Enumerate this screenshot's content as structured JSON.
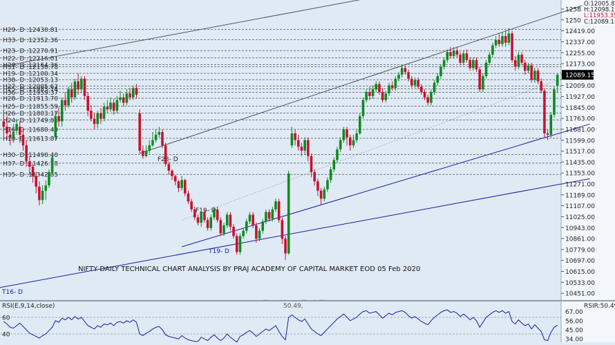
{
  "chart_data": {
    "type": "candlestick",
    "title": "NIFTY DAILY TECHNICAL CHART ANALYSIS BY PRAJ ACADEMY OF CAPITAL MARKET EOD 05 Feb 2020",
    "watermark": "Sharekhan - TradeTiger",
    "ohlc_readout": [
      "O:12005.85",
      "H:12098.15",
      "L:11953.35",
      "C:12089.15"
    ],
    "last_price": "12089.15",
    "y_axis_ticks": [
      12583.0,
      12501.0,
      12419.0,
      12337.0,
      12255.0,
      12173.0,
      12089.15,
      12009.0,
      11927.0,
      11845.0,
      11763.0,
      11681.0,
      11599.0,
      11517.0,
      11435.0,
      11353.0,
      11271.0,
      11189.0,
      11107.0,
      11025.0,
      10943.0,
      10861.0,
      10779.0,
      10697.0,
      10615.0,
      10533.0,
      10451.0
    ],
    "ylim": [
      10400,
      12640
    ],
    "horizontal_levels": [
      {
        "label": "H29- D :12430.81",
        "value": 12430.81
      },
      {
        "label": "H33- D :12352.36",
        "value": 12352.36
      },
      {
        "label": "H23- D :12270.91",
        "value": 12270.91
      },
      {
        "label": "H22- D :12216.01",
        "value": 12216.01
      },
      {
        "label": "H20- D :12164.36",
        "value": 12164.36
      },
      {
        "label": "H31- D :12150.78",
        "value": 12150.78
      },
      {
        "label": "H19- D :12100.34",
        "value": 12100.34
      },
      {
        "label": "H38- D :12053.13",
        "value": 12053.13
      },
      {
        "label": "H27- D :12005.62",
        "value": 12005.62
      },
      {
        "label": "H25- D :11985.14",
        "value": 11985.14
      },
      {
        "label": "H36- D :11959.37",
        "value": 11959.37
      },
      {
        "label": "H28- D :11913.70",
        "value": 11913.7
      },
      {
        "label": "H25- D :11855.59",
        "value": 11855.59
      },
      {
        "label": "H26- D :11803.17",
        "value": 11803.17
      },
      {
        "label": "H24- D :11749.81",
        "value": 11749.81
      },
      {
        "label": "H16- D :11680.49",
        "value": 11680.49
      },
      {
        "label": "H18- D :11613.87",
        "value": 11613.87
      },
      {
        "label": "H30- D :11490.40",
        "value": 11490.4
      },
      {
        "label": "H37- D :11426.78",
        "value": 11426.78
      },
      {
        "label": "H35- D :11342.85",
        "value": 11342.85
      }
    ],
    "trendline_labels": [
      "F23- D",
      "F19- D",
      "T19- D",
      "T16- D"
    ],
    "candles": [
      [
        11740,
        11700,
        11830,
        11600
      ],
      [
        11700,
        11650,
        11780,
        11600
      ],
      [
        11640,
        11620,
        11700,
        11560
      ],
      [
        11620,
        11660,
        11720,
        11580
      ],
      [
        11670,
        11720,
        11760,
        11640
      ],
      [
        11700,
        11640,
        11740,
        11580
      ],
      [
        11640,
        11560,
        11680,
        11520
      ],
      [
        11560,
        11440,
        11600,
        11400
      ],
      [
        11440,
        11400,
        11480,
        11340
      ],
      [
        11400,
        11330,
        11420,
        11280
      ],
      [
        11330,
        11250,
        11360,
        11200
      ],
      [
        11250,
        11150,
        11290,
        11110
      ],
      [
        11150,
        11220,
        11260,
        11120
      ],
      [
        11220,
        11260,
        11300,
        11150
      ],
      [
        11260,
        11360,
        11380,
        11240
      ],
      [
        11360,
        11470,
        11480,
        11350
      ],
      [
        11620,
        11780,
        11820,
        11600
      ],
      [
        11780,
        11740,
        11850,
        11700
      ],
      [
        11740,
        11900,
        11920,
        11700
      ],
      [
        11900,
        11860,
        11960,
        11820
      ],
      [
        11860,
        11980,
        12000,
        11840
      ],
      [
        11980,
        11920,
        12030,
        11880
      ],
      [
        11920,
        12040,
        12060,
        11900
      ],
      [
        12040,
        11980,
        12100,
        11940
      ],
      [
        11980,
        12060,
        12080,
        11950
      ],
      [
        12060,
        11930,
        12080,
        11900
      ],
      [
        11930,
        11820,
        11960,
        11780
      ],
      [
        11820,
        11760,
        11860,
        11740
      ],
      [
        11760,
        11720,
        11800,
        11680
      ],
      [
        11720,
        11800,
        11820,
        11690
      ],
      [
        11800,
        11760,
        11840,
        11720
      ],
      [
        11760,
        11850,
        11880,
        11740
      ],
      [
        11850,
        11830,
        11900,
        11800
      ],
      [
        11830,
        11880,
        11920,
        11810
      ],
      [
        11880,
        11820,
        11910,
        11790
      ],
      [
        11820,
        11900,
        11930,
        11800
      ],
      [
        11900,
        11920,
        11970,
        11880
      ],
      [
        11920,
        11880,
        11950,
        11850
      ],
      [
        11880,
        11950,
        11980,
        11860
      ],
      [
        11950,
        11920,
        11990,
        11900
      ],
      [
        11920,
        11990,
        12010,
        11900
      ],
      [
        11990,
        11940,
        12020,
        11910
      ],
      [
        11800,
        11520,
        11830,
        11500
      ],
      [
        11520,
        11480,
        11560,
        11460
      ],
      [
        11480,
        11520,
        11560,
        11470
      ],
      [
        11520,
        11560,
        11600,
        11500
      ],
      [
        11560,
        11600,
        11660,
        11550
      ],
      [
        11600,
        11640,
        11680,
        11580
      ],
      [
        11640,
        11660,
        11700,
        11620
      ],
      [
        11660,
        11560,
        11680,
        11540
      ],
      [
        11560,
        11420,
        11580,
        11400
      ],
      [
        11420,
        11370,
        11440,
        11340
      ],
      [
        11370,
        11330,
        11380,
        11300
      ],
      [
        11330,
        11290,
        11340,
        11260
      ],
      [
        11290,
        11240,
        11300,
        11210
      ],
      [
        11240,
        11300,
        11330,
        11220
      ],
      [
        11300,
        11200,
        11310,
        11180
      ],
      [
        11200,
        11140,
        11220,
        11120
      ],
      [
        11140,
        11080,
        11160,
        11060
      ],
      [
        11080,
        11020,
        11100,
        11000
      ],
      [
        11020,
        10980,
        11040,
        10960
      ],
      [
        10980,
        11060,
        11080,
        10950
      ],
      [
        11060,
        11000,
        11080,
        10980
      ],
      [
        11000,
        10940,
        11020,
        10920
      ],
      [
        10940,
        11020,
        11040,
        10920
      ],
      [
        11020,
        11080,
        11100,
        11000
      ],
      [
        11080,
        11000,
        11100,
        10980
      ],
      [
        11000,
        10900,
        11020,
        10880
      ],
      [
        10900,
        10960,
        10980,
        10880
      ],
      [
        10960,
        11040,
        11060,
        10940
      ],
      [
        11040,
        10950,
        11060,
        10920
      ],
      [
        10950,
        10880,
        10970,
        10860
      ],
      [
        10880,
        10760,
        10900,
        10740
      ],
      [
        10760,
        10880,
        10900,
        10740
      ],
      [
        10880,
        10920,
        10940,
        10860
      ],
      [
        10920,
        10990,
        11010,
        10900
      ],
      [
        10990,
        11040,
        11060,
        10970
      ],
      [
        11040,
        10960,
        11060,
        10940
      ],
      [
        10960,
        10860,
        10980,
        10830
      ],
      [
        10860,
        10920,
        10940,
        10840
      ],
      [
        10920,
        10990,
        11010,
        10900
      ],
      [
        10990,
        11060,
        11080,
        10970
      ],
      [
        11060,
        11010,
        11080,
        10990
      ],
      [
        11010,
        11080,
        11100,
        10990
      ],
      [
        11080,
        11140,
        11160,
        11060
      ],
      [
        11140,
        11000,
        11160,
        10980
      ],
      [
        11000,
        10860,
        11020,
        10820
      ],
      [
        10860,
        10750,
        10880,
        10700
      ],
      [
        10750,
        11350,
        11370,
        10740
      ],
      [
        11560,
        11650,
        11700,
        11540
      ],
      [
        11650,
        11600,
        11680,
        11560
      ],
      [
        11600,
        11550,
        11640,
        11520
      ],
      [
        11550,
        11520,
        11580,
        11480
      ],
      [
        11520,
        11600,
        11620,
        11490
      ],
      [
        11600,
        11480,
        11620,
        11440
      ],
      [
        11480,
        11360,
        11500,
        11320
      ],
      [
        11360,
        11290,
        11380,
        11260
      ],
      [
        11290,
        11220,
        11310,
        11180
      ],
      [
        11220,
        11160,
        11240,
        11110
      ],
      [
        11160,
        11230,
        11250,
        11140
      ],
      [
        11230,
        11300,
        11320,
        11210
      ],
      [
        11300,
        11380,
        11400,
        11280
      ],
      [
        11380,
        11450,
        11470,
        11360
      ],
      [
        11450,
        11530,
        11550,
        11430
      ],
      [
        11530,
        11600,
        11620,
        11510
      ],
      [
        11600,
        11680,
        11700,
        11580
      ],
      [
        11680,
        11620,
        11700,
        11560
      ],
      [
        11620,
        11560,
        11640,
        11520
      ],
      [
        11560,
        11600,
        11640,
        11540
      ],
      [
        11600,
        11650,
        11680,
        11580
      ],
      [
        11650,
        11780,
        11800,
        11640
      ],
      [
        11780,
        11900,
        11920,
        11760
      ],
      [
        11900,
        11960,
        11980,
        11880
      ],
      [
        11960,
        11930,
        12000,
        11900
      ],
      [
        11930,
        11980,
        12010,
        11910
      ],
      [
        11980,
        12020,
        12040,
        11960
      ],
      [
        12020,
        11960,
        12040,
        11940
      ],
      [
        11960,
        11900,
        11990,
        11880
      ],
      [
        11900,
        11950,
        11970,
        11880
      ],
      [
        11950,
        12010,
        12030,
        11930
      ],
      [
        12010,
        11990,
        12040,
        11970
      ],
      [
        11990,
        12060,
        12080,
        11970
      ],
      [
        12060,
        12090,
        12110,
        12040
      ],
      [
        12090,
        12140,
        12160,
        12070
      ],
      [
        12140,
        12110,
        12160,
        12090
      ],
      [
        12110,
        12060,
        12130,
        12040
      ],
      [
        12060,
        12010,
        12080,
        11990
      ],
      [
        12010,
        12050,
        12070,
        11990
      ],
      [
        12050,
        12000,
        12070,
        11980
      ],
      [
        12000,
        11960,
        12020,
        11940
      ],
      [
        11960,
        11920,
        11980,
        11900
      ],
      [
        11920,
        11880,
        11940,
        11860
      ],
      [
        11880,
        11960,
        11980,
        11860
      ],
      [
        11960,
        12030,
        12050,
        11940
      ],
      [
        12030,
        12080,
        12100,
        12010
      ],
      [
        12080,
        12150,
        12170,
        12060
      ],
      [
        12150,
        12200,
        12220,
        12130
      ],
      [
        12200,
        12260,
        12280,
        12180
      ],
      [
        12260,
        12230,
        12300,
        12210
      ],
      [
        12230,
        12270,
        12300,
        12210
      ],
      [
        12270,
        12240,
        12300,
        12220
      ],
      [
        12240,
        12180,
        12260,
        12160
      ],
      [
        12180,
        12250,
        12270,
        12160
      ],
      [
        12250,
        12200,
        12280,
        12180
      ],
      [
        12200,
        12140,
        12220,
        12120
      ],
      [
        12140,
        12200,
        12220,
        12120
      ],
      [
        12200,
        12130,
        12220,
        12110
      ],
      [
        12130,
        11980,
        12150,
        11960
      ],
      [
        11980,
        12080,
        12100,
        11960
      ],
      [
        12080,
        12180,
        12200,
        12060
      ],
      [
        12180,
        12240,
        12260,
        12160
      ],
      [
        12240,
        12310,
        12330,
        12220
      ],
      [
        12310,
        12350,
        12380,
        12290
      ],
      [
        12350,
        12320,
        12400,
        12300
      ],
      [
        12320,
        12380,
        12410,
        12300
      ],
      [
        12380,
        12330,
        12420,
        12300
      ],
      [
        12330,
        12400,
        12440,
        12310
      ],
      [
        12400,
        12200,
        12420,
        12180
      ],
      [
        12200,
        12150,
        12230,
        12120
      ],
      [
        12150,
        12240,
        12260,
        12130
      ],
      [
        12240,
        12180,
        12260,
        12160
      ],
      [
        12180,
        12120,
        12200,
        12090
      ],
      [
        12120,
        12160,
        12180,
        12100
      ],
      [
        12160,
        12050,
        12180,
        12030
      ],
      [
        12050,
        12120,
        12140,
        12030
      ],
      [
        12120,
        12040,
        12140,
        12020
      ],
      [
        12040,
        11970,
        12060,
        11950
      ],
      [
        11970,
        11650,
        11990,
        11620
      ],
      [
        11650,
        11640,
        11680,
        11600
      ],
      [
        11640,
        11790,
        11810,
        11620
      ],
      [
        11790,
        11980,
        12000,
        11770
      ],
      [
        12005.85,
        12089.15,
        12098.15,
        11953.35
      ]
    ],
    "rsi": {
      "label": "RSI(E,9,14,close)",
      "mid_value_label": "50.49,",
      "right_label": "RSIR:50.49",
      "ticks": [
        67.0,
        56.0,
        45.0,
        34.0
      ],
      "left_ticks": [
        60,
        40
      ],
      "ylim": [
        30,
        75
      ],
      "values": [
        55,
        52,
        48,
        47,
        50,
        53,
        49,
        45,
        41,
        39,
        37,
        35,
        38,
        40,
        44,
        48,
        56,
        54,
        59,
        57,
        60,
        57,
        61,
        58,
        60,
        55,
        50,
        48,
        46,
        50,
        48,
        52,
        51,
        53,
        50,
        54,
        55,
        53,
        56,
        54,
        57,
        54,
        40,
        38,
        41,
        43,
        46,
        48,
        49,
        45,
        39,
        37,
        36,
        35,
        34,
        38,
        35,
        33,
        32,
        31,
        31,
        36,
        34,
        32,
        36,
        39,
        35,
        32,
        35,
        40,
        36,
        33,
        30,
        37,
        39,
        42,
        44,
        41,
        37,
        40,
        43,
        46,
        44,
        47,
        50,
        43,
        37,
        33,
        60,
        63,
        60,
        57,
        55,
        58,
        52,
        46,
        43,
        40,
        38,
        42,
        46,
        50,
        54,
        58,
        61,
        64,
        60,
        56,
        58,
        60,
        64,
        67,
        68,
        65,
        66,
        67,
        63,
        59,
        62,
        65,
        63,
        66,
        67,
        68,
        66,
        62,
        59,
        61,
        58,
        55,
        53,
        51,
        56,
        60,
        63,
        66,
        68,
        69,
        66,
        67,
        65,
        61,
        64,
        61,
        57,
        60,
        56,
        48,
        54,
        60,
        63,
        66,
        68,
        66,
        68,
        65,
        67,
        55,
        52,
        57,
        53,
        50,
        52,
        46,
        51,
        47,
        43,
        33,
        32,
        42,
        48,
        50.49
      ]
    }
  }
}
